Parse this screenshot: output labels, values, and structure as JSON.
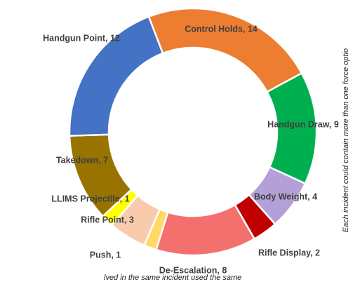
{
  "chart_data": {
    "type": "donut",
    "values": [
      14,
      9,
      4,
      2,
      8,
      1,
      3,
      1,
      7,
      12
    ],
    "value_labels": [
      "Control Holds, 14",
      "Handgun Draw, 9",
      "Body Weight, 4",
      "Rifle Display, 2",
      "De-Escalation, 8",
      "Push, 1",
      "Rifle Point, 3",
      "LLIMS Projectile, 1",
      "Takedown, 7",
      "Handgun Point, 12"
    ],
    "colors": [
      "#ED7D31",
      "#00B050",
      "#B4A0D8",
      "#C00000",
      "#F4706E",
      "#FFD966",
      "#F8CBAD",
      "#FFFF00",
      "#997300",
      "#4472C4"
    ],
    "annotations": [
      "Each incident could contain more than one force optio",
      "lved in the same incident used the same"
    ]
  }
}
